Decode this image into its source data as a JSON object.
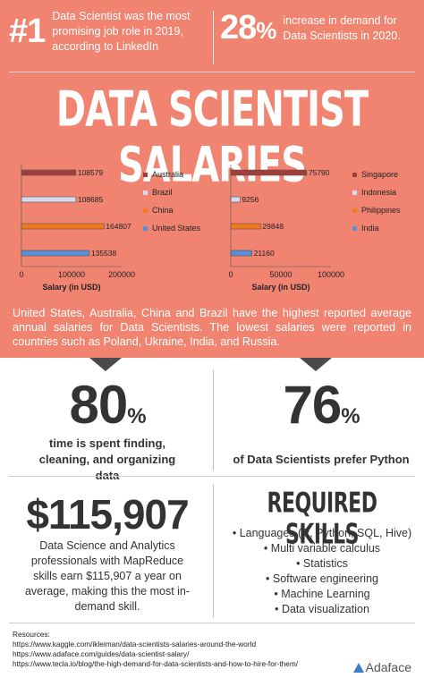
{
  "header": {
    "stat1": {
      "value": "#1",
      "text": "Data Scientist was the most promising job role in 2019, according to LinkedIn"
    },
    "stat2": {
      "value": "28",
      "unit": "%",
      "text": "increase in demand for Data Scientists in 2020."
    }
  },
  "title": "DATA SCIENTIST SALARIES",
  "chart_data": [
    {
      "type": "bar",
      "orientation": "horizontal",
      "categories": [
        "Australia",
        "Brazil",
        "China",
        "United States"
      ],
      "values": [
        108579,
        108685,
        164807,
        135538
      ],
      "colors": [
        "#a13d3b",
        "#d8d8ee",
        "#f07a1d",
        "#5b8fd5"
      ],
      "xlabel": "Salary (in USD)",
      "xlim": [
        0,
        200000
      ],
      "xticks": [
        "0",
        "100000",
        "200000"
      ],
      "legend": "right",
      "grid": false
    },
    {
      "type": "bar",
      "orientation": "horizontal",
      "categories": [
        "Singapore",
        "Indonesia",
        "Philippines",
        "India"
      ],
      "values": [
        75790,
        9256,
        29848,
        21160
      ],
      "colors": [
        "#a13d3b",
        "#d8d8ee",
        "#f07a1d",
        "#5b8fd5"
      ],
      "xlabel": "Salary (in USD)",
      "xlim": [
        0,
        100000
      ],
      "xticks": [
        "0",
        "50000",
        "100000"
      ],
      "legend": "right",
      "grid": false
    }
  ],
  "summary": "United States, Australia, China and Brazil have the highest reported average annual salaries for Data Scientists. The lowest salaries were reported in countries such as Poland, Ukraine, India, and Russia.",
  "stats": {
    "time": {
      "value": "80",
      "unit": "%",
      "caption": "time is spent finding, cleaning, and organizing data"
    },
    "python": {
      "value": "76",
      "unit": "%",
      "caption": "of Data Scientists prefer Python"
    },
    "salary": {
      "value": "$115,907",
      "caption": "Data Science and Analytics professionals with MapReduce skills earn $115,907 a year on average, making this the most in-demand skill."
    }
  },
  "skills": {
    "title": "REQUIRED SKILLS",
    "items": [
      "Languages (R, Python, SQL, Hive)",
      "Multi variable calculus",
      "Statistics",
      "Software engineering",
      "Machine Learning",
      "Data visualization"
    ]
  },
  "resources": {
    "label": "Resources:",
    "links": [
      "https://www.kaggle.com/ikleiman/data-scientists-salaries-around-the-world",
      "https://www.adaface.com/guides/data-scientist-salary/",
      "https://www.tecla.io/blog/the-high-demand-for-data-scientists-and-how-to-hire-for-them/"
    ]
  },
  "brand": "Adaface",
  "colors": {
    "background_top": "#f08471",
    "notch": "#4a4a4a",
    "text_dark": "#333333",
    "brand_blue": "#3e7fc6"
  }
}
